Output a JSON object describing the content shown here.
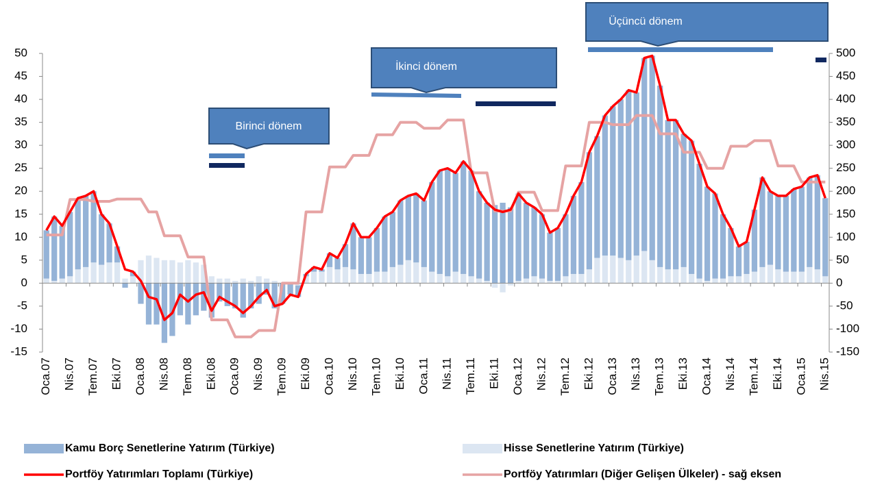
{
  "chart_data": {
    "type": "bar",
    "categories": [
      "Oca.07",
      null,
      null,
      "Nis.07",
      null,
      null,
      "Tem.07",
      null,
      null,
      "Eki.07",
      null,
      null,
      "Oca.08",
      null,
      null,
      "Nis.08",
      null,
      null,
      "Tem.08",
      null,
      null,
      "Eki.08",
      null,
      null,
      "Oca.09",
      null,
      null,
      "Nis.09",
      null,
      null,
      "Tem.09",
      null,
      null,
      "Eki.09",
      null,
      null,
      "Oca.10",
      null,
      null,
      "Nis.10",
      null,
      null,
      "Tem.10",
      null,
      null,
      "Eki.10",
      null,
      null,
      "Oca.11",
      null,
      null,
      "Nis.11",
      null,
      null,
      "Tem.11",
      null,
      null,
      "Eki.11",
      null,
      null,
      "Oca.12",
      null,
      null,
      "Nis.12",
      null,
      null,
      "Tem.12",
      null,
      null,
      "Eki.12",
      null,
      null,
      "Oca.13",
      null,
      null,
      "Nis.13",
      null,
      null,
      "Tem.13",
      null,
      null,
      "Eki.13",
      null,
      null,
      "Oca.14",
      null,
      null,
      "Nis.14",
      null,
      null,
      "Tem.14",
      null,
      null,
      "Eki.14",
      null,
      null,
      "Oca.15",
      null,
      null,
      "Nis.15"
    ],
    "series": [
      {
        "name": "Kamu Borç Senetlerine Yatırım (Türkiye)",
        "kind": "bar",
        "color": "#95b3d7",
        "values": [
          10.5,
          14,
          11.5,
          14,
          15.5,
          15.5,
          15.5,
          11,
          8.5,
          3.5,
          -1,
          1,
          -4.5,
          -9,
          -9,
          -13,
          -11.5,
          -7,
          -9,
          -7,
          -6,
          -7.5,
          -4,
          -5,
          -5.5,
          -7.5,
          -5.5,
          -4.5,
          -2.5,
          -5.5,
          -4.5,
          -2.5,
          -2.5,
          0.5,
          1,
          0.5,
          3,
          2.5,
          5,
          10,
          8,
          8,
          9.5,
          12,
          12,
          14,
          14,
          15,
          14.5,
          19.5,
          22.5,
          23.5,
          21.5,
          24.5,
          23,
          19,
          17,
          17,
          17.5,
          16.5,
          19,
          16.5,
          15,
          14,
          10.5,
          11.5,
          13.5,
          17,
          20,
          25.5,
          26.5,
          30.5,
          32.5,
          34.5,
          37,
          35.5,
          42,
          44.5,
          39.5,
          32.5,
          32.5,
          29,
          29,
          25,
          20.5,
          18.5,
          14,
          10.5,
          6.5,
          7,
          13.5,
          19.5,
          16,
          16,
          16.5,
          18,
          18.5,
          19.5,
          20.5,
          17
        ]
      },
      {
        "name": "Hisse Senetlerine Yatırım (Türkiye)",
        "kind": "bar",
        "color": "#dce6f2",
        "values": [
          1,
          0.5,
          1,
          1.5,
          3,
          3.5,
          4.5,
          4,
          4.5,
          4.5,
          1,
          1.5,
          5,
          6,
          5.5,
          5,
          5,
          4.5,
          5,
          4.5,
          4,
          1.5,
          1,
          1,
          0.5,
          1,
          0.5,
          1.5,
          1,
          0.5,
          0,
          0,
          -0.5,
          1.5,
          2.5,
          2.5,
          3.5,
          3,
          3.5,
          3,
          2,
          2,
          2.5,
          2.5,
          3.5,
          4,
          5,
          4.5,
          3.5,
          2.5,
          2,
          1.5,
          2.5,
          2,
          1.5,
          1,
          0.5,
          -1,
          -2,
          -0.5,
          0.5,
          1,
          1.5,
          1,
          0.5,
          0.5,
          1.5,
          2,
          2,
          3,
          5.5,
          6,
          6,
          5.5,
          5,
          6,
          7,
          5,
          3.5,
          3,
          3,
          3.5,
          2,
          1,
          0.5,
          1,
          1,
          1.5,
          1.5,
          2,
          2.5,
          3.5,
          4,
          3,
          2.5,
          2.5,
          2.5,
          3.5,
          3,
          1.5
        ]
      },
      {
        "name": "Portföy Yatırımları Toplamı (Türkiye)",
        "kind": "line",
        "color": "#ff0000",
        "values": [
          11.5,
          14.5,
          12.5,
          15.5,
          18.5,
          19,
          20,
          15,
          13,
          8,
          3,
          2.5,
          0.5,
          -3,
          -3.5,
          -8,
          -6.5,
          -2.5,
          -4,
          -2.5,
          -2,
          -6,
          -3,
          -4,
          -5,
          -6.5,
          -5,
          -3,
          -1.5,
          -5,
          -4.5,
          -2.5,
          -3,
          2,
          3.5,
          3,
          6.5,
          5.5,
          8.5,
          13,
          10,
          10,
          12,
          14.5,
          15.5,
          18,
          19,
          19.5,
          18,
          22,
          24.5,
          25,
          24,
          26.5,
          24.5,
          20,
          17.5,
          16,
          15.5,
          16,
          19.5,
          17.5,
          16.5,
          15,
          11,
          12,
          15,
          19,
          22,
          28.5,
          32,
          36.5,
          38.5,
          40,
          42,
          41.5,
          49,
          49.5,
          43,
          35.5,
          35.5,
          32.5,
          31,
          26,
          21,
          19.5,
          15,
          12,
          8,
          9,
          16,
          23,
          20,
          19,
          19,
          20.5,
          21,
          23,
          23.5,
          18.5
        ]
      },
      {
        "name": "Portföy Yatırımları (Diğer Gelişen Ülkeler) - sağ eksen",
        "kind": "line",
        "axis": "y2",
        "color": "#e6a3a3",
        "values": [
          105,
          105,
          105,
          182,
          182,
          182,
          178,
          178,
          178,
          183,
          183,
          183,
          183,
          155,
          155,
          103,
          103,
          103,
          57,
          57,
          57,
          -80,
          -80,
          -80,
          -117,
          -117,
          -117,
          -103,
          -103,
          -103,
          0,
          0,
          0,
          155,
          155,
          155,
          253,
          253,
          253,
          278,
          278,
          278,
          323,
          323,
          323,
          350,
          350,
          350,
          337,
          337,
          337,
          355,
          355,
          355,
          240,
          240,
          240,
          157,
          157,
          157,
          198,
          198,
          198,
          158,
          158,
          158,
          255,
          255,
          255,
          350,
          350,
          350,
          345,
          345,
          345,
          365,
          365,
          365,
          325,
          325,
          325,
          285,
          285,
          285,
          250,
          250,
          250,
          298,
          298,
          298,
          310,
          310,
          310,
          255,
          255,
          255,
          220,
          220,
          220,
          220
        ]
      }
    ],
    "ylim": [
      -15,
      50
    ],
    "yticks": [
      -15,
      -10,
      -5,
      0,
      5,
      10,
      15,
      20,
      25,
      30,
      35,
      40,
      45,
      50
    ],
    "y2lim": [
      -150,
      500
    ],
    "y2ticks": [
      -150,
      -100,
      -50,
      0,
      50,
      100,
      150,
      200,
      250,
      300,
      350,
      400,
      450,
      500
    ],
    "annotations": [
      "Birinci dönem",
      "İkinci dönem",
      "Üçüncü dönem"
    ]
  }
}
